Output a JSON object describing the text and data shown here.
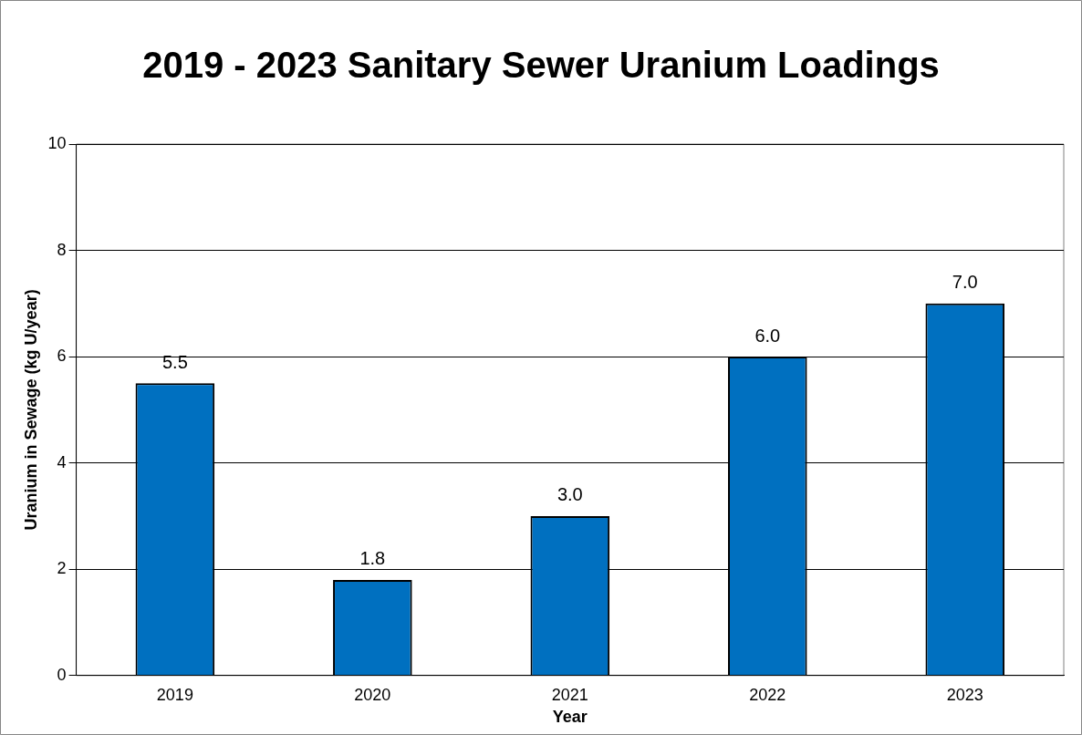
{
  "chart_data": {
    "type": "bar",
    "title": "2019 - 2023 Sanitary Sewer Uranium Loadings",
    "xlabel": "Year",
    "ylabel": "Uranium in Sewage (kg U/year)",
    "categories": [
      "2019",
      "2020",
      "2021",
      "2022",
      "2023"
    ],
    "values": [
      5.5,
      1.8,
      3.0,
      6.0,
      7.0
    ],
    "value_labels": [
      "5.5",
      "1.8",
      "3.0",
      "6.0",
      "7.0"
    ],
    "color": "#0070c0",
    "ylim": [
      0,
      10
    ],
    "yticks": [
      0,
      2,
      4,
      6,
      8,
      10
    ],
    "grid": "y",
    "legend": false
  }
}
